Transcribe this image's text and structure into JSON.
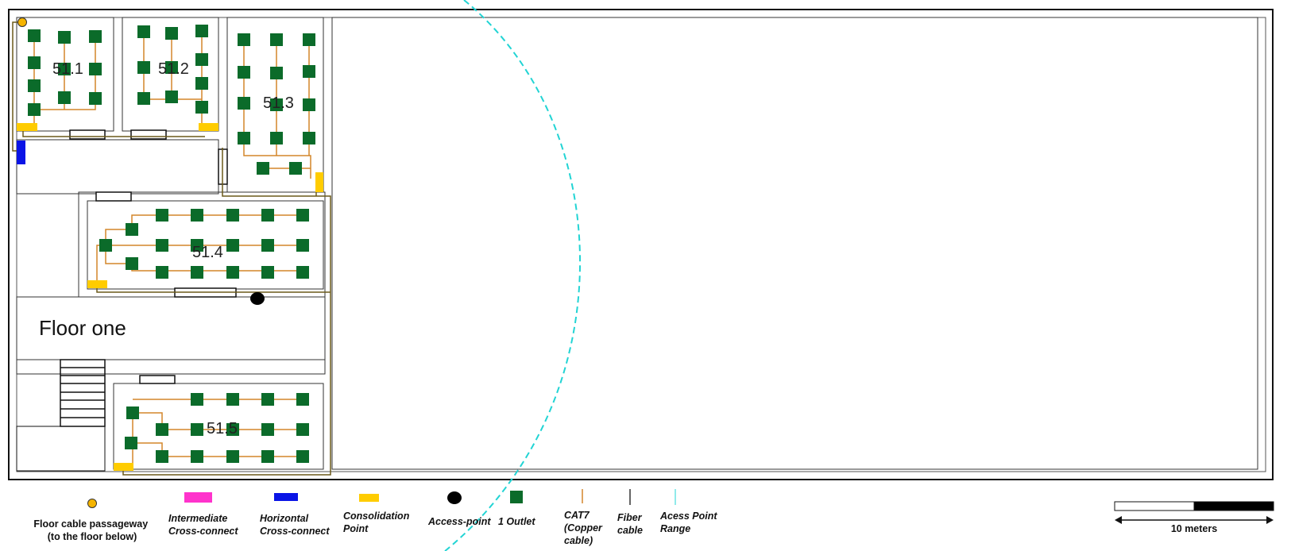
{
  "floor_title": "Floor one",
  "rooms": [
    {
      "id": "511",
      "label": "51.1"
    },
    {
      "id": "512",
      "label": "51.2"
    },
    {
      "id": "513",
      "label": "51.3"
    },
    {
      "id": "514",
      "label": "51.4"
    },
    {
      "id": "515",
      "label": "51.5"
    }
  ],
  "legend": {
    "floor_cable_passageway": [
      "Floor cable passageway",
      "(to the floor below)"
    ],
    "intermediate_cross_connect": [
      "Intermediate",
      "Cross-connect"
    ],
    "horizontal_cross_connect": [
      "Horizontal",
      "Cross-connect"
    ],
    "consolidation_point": [
      "Consolidation",
      "Point"
    ],
    "access_point": [
      "Access-point"
    ],
    "outlet": [
      "1 Outlet"
    ],
    "cat7": [
      "CAT7",
      "(Copper",
      "cable)"
    ],
    "fiber": [
      "Fiber",
      "cable"
    ],
    "ap_range": [
      "Acess Point",
      " Range"
    ]
  },
  "scale_bar": {
    "label": "10 meters"
  },
  "colors": {
    "outlet": "#0b6b2a",
    "copper": "#d4862a",
    "fiber": "#6b5a1a",
    "consolidation": "#ffcc00",
    "horizontal_xc": "#0a14e6",
    "intermediate_xc": "#ff33cc",
    "ap_range": "#22d4d4",
    "passageway": "#f5b400"
  }
}
